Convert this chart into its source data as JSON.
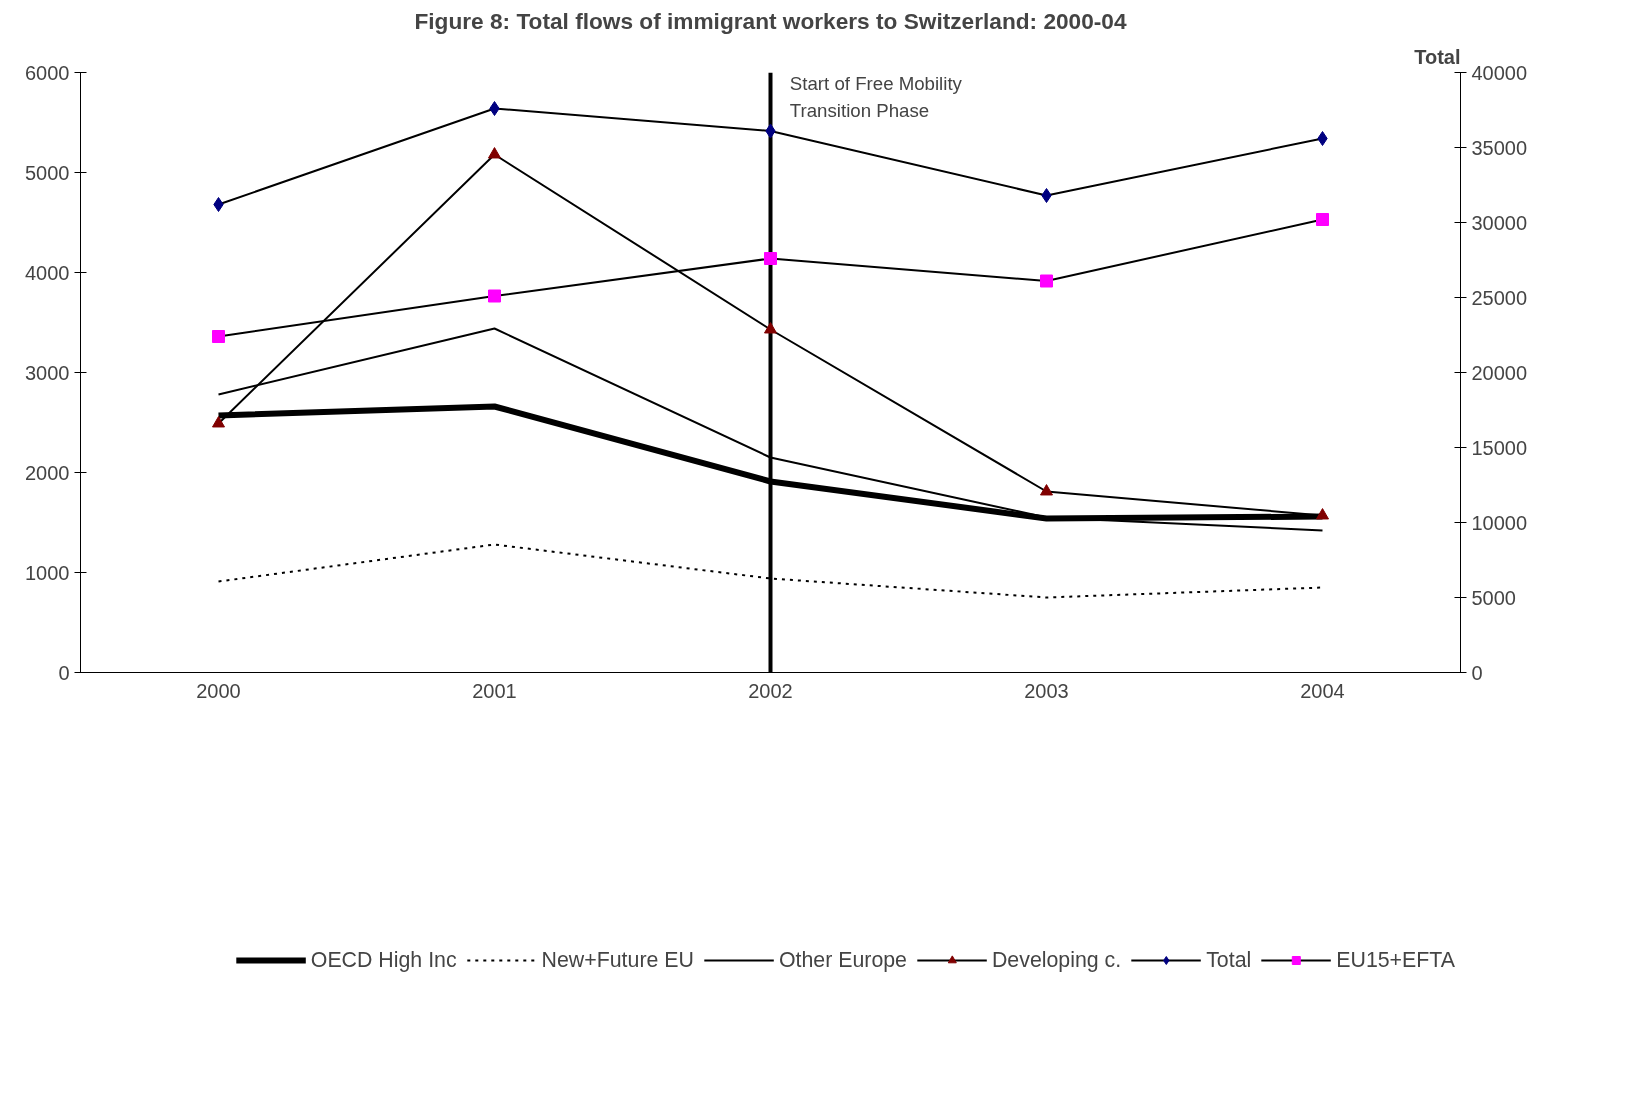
{
  "chart_data": {
    "type": "line",
    "title": "Figure 8: Total flows of immigrant workers to Switzerland: 2000-04",
    "y2label": "Total",
    "categories": [
      "2000",
      "2001",
      "2002",
      "2003",
      "2004"
    ],
    "series": [
      {
        "name": "OECD High Inc",
        "color": "#000000",
        "marker": "none",
        "line_style": "solid",
        "values": [
          2570,
          2660,
          1910,
          1540,
          1560
        ]
      },
      {
        "name": "New+Future EU",
        "color": "#000000",
        "marker": "none",
        "line_style": "dotted",
        "values": [
          910,
          1280,
          940,
          750,
          850
        ]
      },
      {
        "name": "Other Europe",
        "color": "#000000",
        "marker": "none",
        "line_style": "solid",
        "values": [
          2780,
          3440,
          2150,
          1550,
          1420
        ]
      },
      {
        "name": "Developing c.",
        "color": "#800000",
        "marker": "triangle",
        "line_style": "solid",
        "values": [
          2490,
          5180,
          3430,
          1810,
          1570
        ]
      },
      {
        "name": "Total",
        "color": "#000080",
        "marker": "diamond",
        "line_style": "solid",
        "axis": "y2",
        "values": [
          31200,
          37600,
          36100,
          31800,
          35600
        ]
      },
      {
        "name": "EU15+EFTA",
        "color": "#ff00ff",
        "marker": "square",
        "line_style": "solid",
        "axis": "y2",
        "values": [
          22400,
          25100,
          27600,
          26100,
          30200
        ]
      }
    ],
    "ylim": [
      0,
      6000
    ],
    "yticks": [
      0,
      1000,
      2000,
      3000,
      4000,
      5000,
      6000
    ],
    "y2lim": [
      0,
      40000
    ],
    "y2ticks": [
      0,
      5000,
      10000,
      15000,
      20000,
      25000,
      30000,
      35000,
      40000
    ],
    "ref_lines": [
      {
        "axis": "x",
        "value": "2002",
        "label": "Start of Free Mobility\nTransition Phase"
      }
    ],
    "grid": false,
    "legend": "bottom"
  }
}
